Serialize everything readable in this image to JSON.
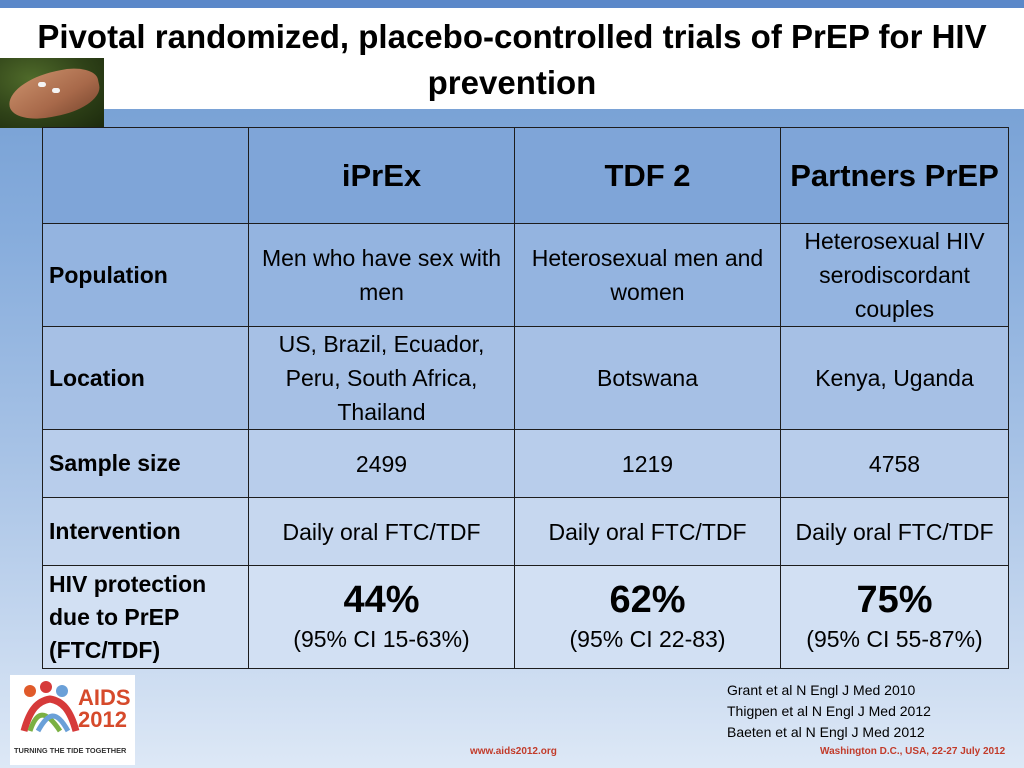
{
  "slide": {
    "title": "Pivotal randomized, placebo-controlled trials of PrEP for HIV prevention"
  },
  "table": {
    "columns": [
      "",
      "iPrEx",
      "TDF 2",
      "Partners PrEP"
    ],
    "rows": [
      {
        "label": "Population",
        "cells": [
          "Men who have sex with men",
          "Heterosexual men and women",
          "Heterosexual HIV serodiscordant couples"
        ]
      },
      {
        "label": "Location",
        "cells": [
          "US, Brazil, Ecuador, Peru, South Africa, Thailand",
          "Botswana",
          "Kenya, Uganda"
        ]
      },
      {
        "label": "Sample size",
        "cells": [
          "2499",
          "1219",
          "4758"
        ]
      },
      {
        "label": "Intervention",
        "cells": [
          "Daily oral FTC/TDF",
          "Daily oral FTC/TDF",
          "Daily oral FTC/TDF"
        ]
      },
      {
        "label": "HIV protection due to PrEP (FTC/TDF)",
        "cells": [
          {
            "value": "44%",
            "ci": "(95% CI 15-63%)"
          },
          {
            "value": "62%",
            "ci": "(95% CI 22-83)"
          },
          {
            "value": "75%",
            "ci": "(95% CI 55-87%)"
          }
        ]
      }
    ]
  },
  "references": [
    "Grant et al N Engl J Med 2010",
    "Thigpen et al N Engl J Med 2012",
    "Baeten et al N Engl J Med 2012"
  ],
  "footer": {
    "url": "www.aids2012.org",
    "venue": "Washington D.C., USA, 22-27 July 2012"
  },
  "logo": {
    "name": "AIDS 2012",
    "tagline": "TURNING THE TIDE TOGETHER"
  },
  "colors": {
    "header_bar": "#5b88c9",
    "table_border": "#1d1d1d",
    "footer_text": "#c23b2a"
  }
}
